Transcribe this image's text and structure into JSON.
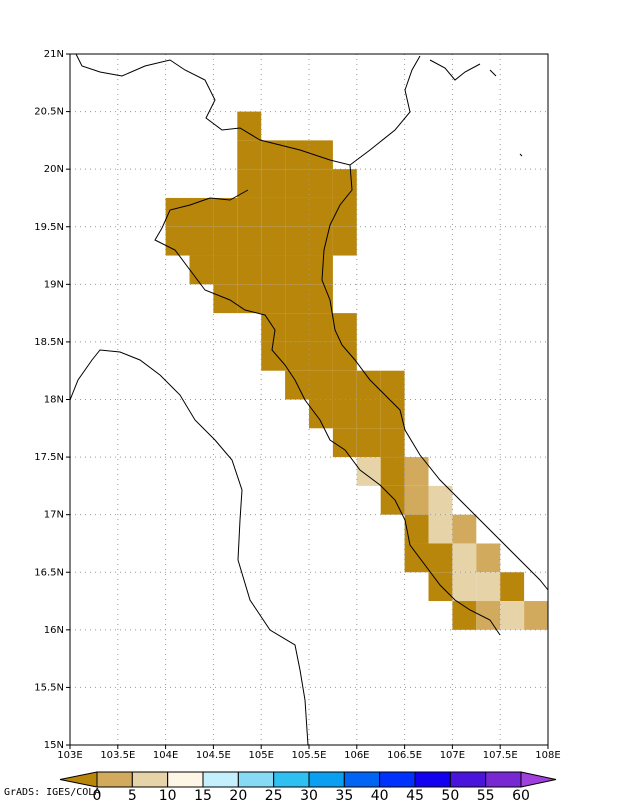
{
  "map": {
    "type": "grid",
    "xlim": [
      103,
      108
    ],
    "ylim": [
      15,
      21
    ],
    "xticks": [
      {
        "value": 103,
        "label": "103E"
      },
      {
        "value": 103.5,
        "label": "103.5E"
      },
      {
        "value": 104,
        "label": "104E"
      },
      {
        "value": 104.5,
        "label": "104.5E"
      },
      {
        "value": 105,
        "label": "105E"
      },
      {
        "value": 105.5,
        "label": "105.5E"
      },
      {
        "value": 106,
        "label": "106E"
      },
      {
        "value": 106.5,
        "label": "106.5E"
      },
      {
        "value": 107,
        "label": "107E"
      },
      {
        "value": 107.5,
        "label": "107.5E"
      },
      {
        "value": 108,
        "label": "108E"
      }
    ],
    "yticks": [
      {
        "value": 15,
        "label": "15N"
      },
      {
        "value": 15.5,
        "label": "15.5N"
      },
      {
        "value": 16,
        "label": "16N"
      },
      {
        "value": 16.5,
        "label": "16.5N"
      },
      {
        "value": 17,
        "label": "17N"
      },
      {
        "value": 17.5,
        "label": "17.5N"
      },
      {
        "value": 18,
        "label": "18N"
      },
      {
        "value": 18.5,
        "label": "18.5N"
      },
      {
        "value": 19,
        "label": "19N"
      },
      {
        "value": 19.5,
        "label": "19.5N"
      },
      {
        "value": 20,
        "label": "20N"
      },
      {
        "value": 20.5,
        "label": "20.5N"
      },
      {
        "value": 21,
        "label": "21N"
      }
    ],
    "grid": true,
    "cell_size": 0.25,
    "cells": {
      "lon": [
        104.75,
        104.75,
        105,
        105.25,
        105.5,
        104.75,
        105,
        105.25,
        105.5,
        105.75,
        104,
        104.25,
        104.5,
        104.75,
        105,
        105.25,
        105.5,
        105.75,
        104,
        104.25,
        104.5,
        104.75,
        105,
        105.25,
        105.5,
        105.75,
        104.25,
        104.5,
        104.75,
        105,
        105.25,
        105.5,
        104.5,
        104.75,
        105,
        105.25,
        105.5,
        105,
        105.25,
        105.5,
        105.75,
        105,
        105.25,
        105.5,
        105.75,
        105.25,
        105.5,
        105.75,
        106,
        106.25,
        105.5,
        105.75,
        106,
        106.25,
        105.75,
        106,
        106.25,
        106,
        106.25,
        106.5,
        106.25,
        106.5,
        106.75,
        106.5,
        106.75,
        107,
        106.5,
        106.75,
        107,
        107.25,
        106.75,
        107,
        107.25,
        107.5,
        107,
        107.25,
        107.5,
        107.75
      ],
      "lat": [
        20.25,
        20,
        20,
        20,
        20,
        19.75,
        19.75,
        19.75,
        19.75,
        19.75,
        19.5,
        19.5,
        19.5,
        19.5,
        19.5,
        19.5,
        19.5,
        19.5,
        19.25,
        19.25,
        19.25,
        19.25,
        19.25,
        19.25,
        19.25,
        19.25,
        19,
        19,
        19,
        19,
        19,
        19,
        18.75,
        18.75,
        18.75,
        18.75,
        18.75,
        18.5,
        18.5,
        18.5,
        18.5,
        18.25,
        18.25,
        18.25,
        18.25,
        18,
        18,
        18,
        18,
        18,
        17.75,
        17.75,
        17.75,
        17.75,
        17.5,
        17.5,
        17.5,
        17.25,
        17.25,
        17.25,
        17,
        17,
        17,
        16.75,
        16.75,
        16.75,
        16.5,
        16.5,
        16.5,
        16.5,
        16.25,
        16.25,
        16.25,
        16.25,
        16,
        16,
        16,
        16
      ],
      "values": [
        -1,
        -1,
        -1,
        -1,
        -1,
        -1,
        -1,
        -1,
        -1,
        -1,
        -1,
        -1,
        -1,
        -1,
        -1,
        -1,
        -1,
        -1,
        -1,
        -1,
        -1,
        -1,
        -1,
        -1,
        -1,
        -1,
        -1,
        -1,
        -1,
        -1,
        -1,
        -1,
        -1,
        -1,
        -1,
        -1,
        -1,
        -1,
        -1,
        -1,
        -1,
        -1,
        -1,
        -1,
        -1,
        -1,
        -1,
        -1,
        -1,
        -1,
        -1,
        -1,
        -1,
        -1,
        -1,
        -1,
        -1,
        7.5,
        -1,
        2.5,
        -1,
        2.5,
        7.5,
        -1,
        7.5,
        2.5,
        -1,
        -1,
        7.5,
        2.5,
        -1,
        7.5,
        7.5,
        -1,
        -1,
        2.5,
        7.5,
        2.5
      ]
    },
    "colorbar": {
      "levels": [
        0,
        5,
        10,
        15,
        20,
        25,
        30,
        35,
        40,
        45,
        50,
        55,
        60
      ],
      "under_color": "#b8860b",
      "colors": [
        "#d2aa5e",
        "#e6d4a8",
        "#fdf5e6",
        "#c4effc",
        "#86daf4",
        "#2ec0f0",
        "#0a9ff0",
        "#0064f5",
        "#0032ff",
        "#1400f0",
        "#4b14dc",
        "#7828d2"
      ],
      "over_color": "#a040dc"
    },
    "credit": "GrADS: IGES/COLA"
  }
}
